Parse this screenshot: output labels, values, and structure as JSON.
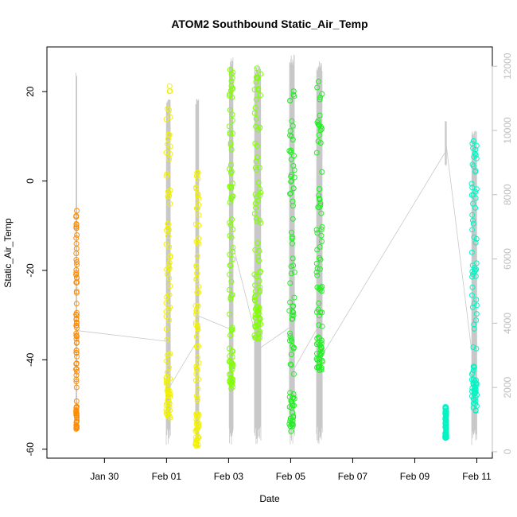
{
  "chart_data": {
    "type": "scatter",
    "title": "ATOM2 Southbound Static_Air_Temp",
    "xlabel": "Date",
    "ylabel": "Static_Air_Temp",
    "x_axis_type": "date",
    "x_range": [
      "2017-01-28T03:30",
      "2017-02-11T12:00"
    ],
    "xticks": [
      {
        "date": "2017-01-30",
        "label": "Jan 30"
      },
      {
        "date": "2017-02-01",
        "label": "Feb 01"
      },
      {
        "date": "2017-02-03",
        "label": "Feb 03"
      },
      {
        "date": "2017-02-05",
        "label": "Feb 05"
      },
      {
        "date": "2017-02-07",
        "label": "Feb 07"
      },
      {
        "date": "2017-02-09",
        "label": "Feb 09"
      },
      {
        "date": "2017-02-11",
        "label": "Feb 11"
      }
    ],
    "ylim": [
      -62,
      30
    ],
    "yticks": [
      -60,
      -40,
      -20,
      0,
      20
    ],
    "y2lim": [
      -200,
      12600
    ],
    "y2ticks": [
      0,
      2000,
      4000,
      6000,
      8000,
      10000,
      12000
    ],
    "y2_color": "#bdbdbd",
    "grid": false,
    "series": [
      {
        "color": "#ff8c00",
        "kind": "points",
        "flights": [
          {
            "start": "2017-01-29T02:00",
            "end": "2017-01-29T02:40",
            "ymin": -56,
            "ymax": -6.5
          }
        ]
      },
      {
        "color": "#f2f200",
        "kind": "points",
        "flights": [
          {
            "start": "2017-01-31T23:45",
            "end": "2017-02-01T03:00",
            "ymin": -53,
            "ymax": 23
          },
          {
            "start": "2017-02-01T22:30",
            "end": "2017-02-02T01:00",
            "ymin": -59.5,
            "ymax": 4
          }
        ]
      },
      {
        "color": "#80ff00",
        "kind": "points",
        "flights": [
          {
            "start": "2017-02-03T00:30",
            "end": "2017-02-03T03:30",
            "ymin": -46.5,
            "ymax": 26.5
          },
          {
            "start": "2017-02-03T20:00",
            "end": "2017-02-04T01:00",
            "ymin": -35.5,
            "ymax": 25.5
          }
        ]
      },
      {
        "color": "#1ef01e",
        "kind": "points",
        "flights": [
          {
            "start": "2017-02-04T23:00",
            "end": "2017-02-05T03:00",
            "ymin": -56,
            "ymax": 20.5
          },
          {
            "start": "2017-02-05T20:00",
            "end": "2017-02-06T00:30",
            "ymin": -42.5,
            "ymax": 24
          }
        ]
      },
      {
        "color": "#00f5c4",
        "kind": "points",
        "flights": [
          {
            "start": "2017-02-09T23:30",
            "end": "2017-02-10T00:30",
            "ymin": -57.5,
            "ymax": -50.5
          },
          {
            "start": "2017-02-10T20:00",
            "end": "2017-02-11T00:00",
            "ymin": -51.5,
            "ymax": 9
          }
        ]
      },
      {
        "color": "#c8c8c8",
        "kind": "altitude-line",
        "axis": "right",
        "flights": [
          {
            "start": "2017-01-29T02:00",
            "end": "2017-01-29T02:40",
            "ymin": 600,
            "ymax": 11800
          },
          {
            "start": "2017-01-31T23:45",
            "end": "2017-02-01T03:00",
            "ymin": 200,
            "ymax": 11000
          },
          {
            "start": "2017-02-01T22:30",
            "end": "2017-02-02T01:00",
            "ymin": 100,
            "ymax": 11000
          },
          {
            "start": "2017-02-03T00:30",
            "end": "2017-02-03T03:30",
            "ymin": 200,
            "ymax": 12300
          },
          {
            "start": "2017-02-03T20:00",
            "end": "2017-02-04T01:00",
            "ymin": 200,
            "ymax": 12100
          },
          {
            "start": "2017-02-04T23:00",
            "end": "2017-02-05T03:00",
            "ymin": 200,
            "ymax": 12400
          },
          {
            "start": "2017-02-05T20:00",
            "end": "2017-02-06T00:30",
            "ymin": 200,
            "ymax": 12200
          },
          {
            "start": "2017-02-09T23:30",
            "end": "2017-02-10T00:30",
            "ymin": 8900,
            "ymax": 10300
          },
          {
            "start": "2017-02-10T20:00",
            "end": "2017-02-11T00:00",
            "ymin": 200,
            "ymax": 10000
          }
        ]
      }
    ]
  }
}
